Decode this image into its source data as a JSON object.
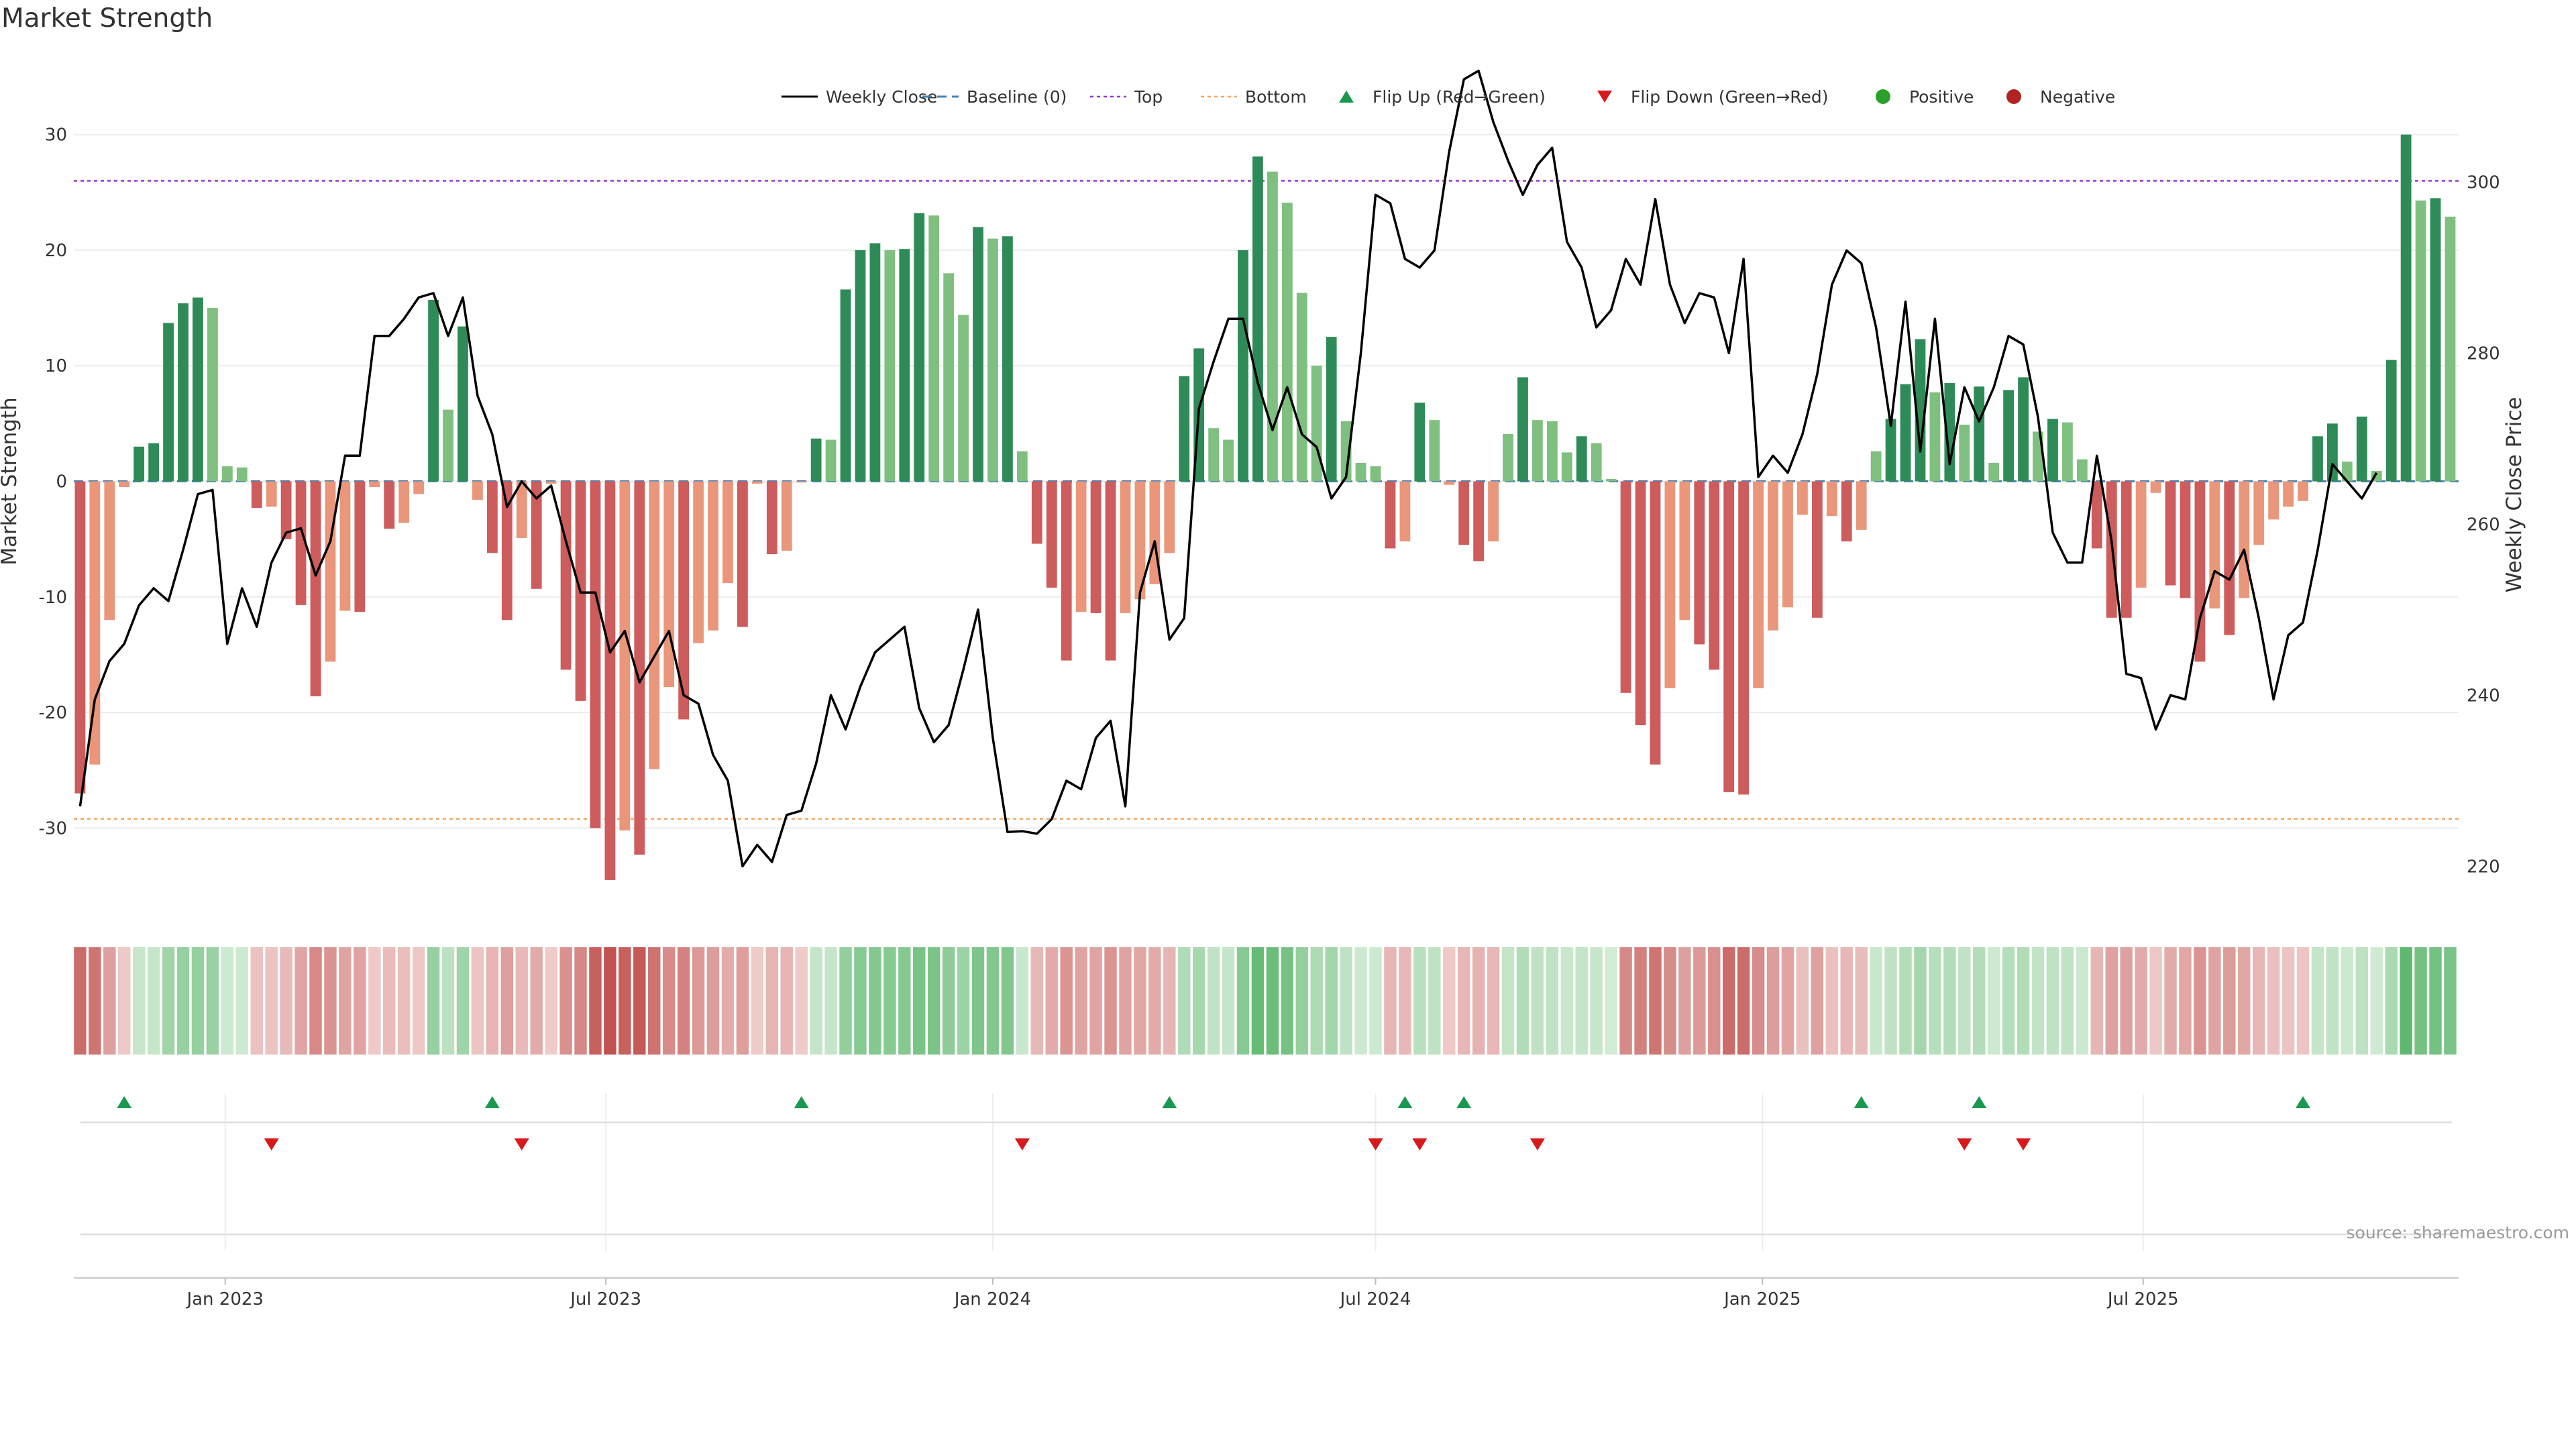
{
  "chart_data": {
    "type": "bar",
    "title": "Market Strength",
    "y_left_label": "Market Strength",
    "y_right_label": "Weekly Close Price",
    "y_left_range": [
      -37,
      37
    ],
    "y_right_range": [
      215,
      315
    ],
    "y_left_ticks": [
      30,
      20,
      10,
      0,
      -10,
      -20,
      -30
    ],
    "y_right_ticks": [
      300,
      280,
      260,
      240,
      220
    ],
    "x_dates": [
      "2022-10-24",
      "2022-10-31",
      "2022-11-07",
      "2022-11-14",
      "2022-11-21",
      "2022-11-28",
      "2022-12-05",
      "2022-12-12",
      "2022-12-19",
      "2022-12-26",
      "2023-01-02",
      "2023-01-09",
      "2023-01-16",
      "2023-01-23",
      "2023-01-30",
      "2023-02-06",
      "2023-02-13",
      "2023-02-20",
      "2023-02-27",
      "2023-03-06",
      "2023-03-13",
      "2023-03-20",
      "2023-03-27",
      "2023-04-03",
      "2023-04-10",
      "2023-04-17",
      "2023-04-24",
      "2023-05-01",
      "2023-05-08",
      "2023-05-15",
      "2023-05-22",
      "2023-05-29",
      "2023-06-05",
      "2023-06-12",
      "2023-06-19",
      "2023-06-26",
      "2023-07-03",
      "2023-07-10",
      "2023-07-17",
      "2023-07-24",
      "2023-07-31",
      "2023-08-07",
      "2023-08-14",
      "2023-08-21",
      "2023-08-28",
      "2023-09-04",
      "2023-09-11",
      "2023-09-18",
      "2023-09-25",
      "2023-10-02",
      "2023-10-09",
      "2023-10-16",
      "2023-10-23",
      "2023-10-30",
      "2023-11-06",
      "2023-11-13",
      "2023-11-20",
      "2023-11-27",
      "2023-12-04",
      "2023-12-11",
      "2023-12-18",
      "2023-12-25",
      "2024-01-01",
      "2024-01-08",
      "2024-01-15",
      "2024-01-22",
      "2024-01-29",
      "2024-02-05",
      "2024-02-12",
      "2024-02-19",
      "2024-02-26",
      "2024-03-04",
      "2024-03-11",
      "2024-03-18",
      "2024-03-25",
      "2024-04-01",
      "2024-04-08",
      "2024-04-15",
      "2024-04-22",
      "2024-04-29",
      "2024-05-06",
      "2024-05-13",
      "2024-05-20",
      "2024-05-27",
      "2024-06-03",
      "2024-06-10",
      "2024-06-17",
      "2024-06-24",
      "2024-07-01",
      "2024-07-08",
      "2024-07-15",
      "2024-07-22",
      "2024-07-29",
      "2024-08-05",
      "2024-08-12",
      "2024-08-19",
      "2024-08-26",
      "2024-09-02",
      "2024-09-09",
      "2024-09-16",
      "2024-09-23",
      "2024-09-30",
      "2024-10-07",
      "2024-10-14",
      "2024-10-21",
      "2024-10-28",
      "2024-11-04",
      "2024-11-11",
      "2024-11-18",
      "2024-11-25",
      "2024-12-02",
      "2024-12-09",
      "2024-12-16",
      "2024-12-23",
      "2024-12-30",
      "2025-01-06",
      "2025-01-13",
      "2025-01-20",
      "2025-01-27",
      "2025-02-03",
      "2025-02-10",
      "2025-02-17",
      "2025-02-24",
      "2025-03-03",
      "2025-03-10",
      "2025-03-17",
      "2025-03-24",
      "2025-03-31",
      "2025-04-07",
      "2025-04-14",
      "2025-04-21",
      "2025-04-28",
      "2025-05-05",
      "2025-05-12",
      "2025-05-19",
      "2025-05-26",
      "2025-06-02",
      "2025-06-09",
      "2025-06-16",
      "2025-06-23",
      "2025-06-30",
      "2025-07-07",
      "2025-07-14",
      "2025-07-21",
      "2025-07-28",
      "2025-08-04",
      "2025-08-11",
      "2025-08-18",
      "2025-08-25",
      "2025-09-01",
      "2025-09-08",
      "2025-09-15",
      "2025-09-22",
      "2025-09-29",
      "2025-10-06",
      "2025-10-13",
      "2025-10-20",
      "2025-10-27",
      "2025-11-03",
      "2025-11-10",
      "2025-11-17",
      "2025-11-24"
    ],
    "x_ticks": [
      "Jan 2023",
      "Jul 2023",
      "Jan 2024",
      "Jul 2024",
      "Jan 2025",
      "Jul 2025"
    ],
    "x_tick_dates": [
      "2023-01-01",
      "2023-07-01",
      "2024-01-01",
      "2024-07-01",
      "2025-01-01",
      "2025-07-01"
    ],
    "x_range": [
      "2022-10-21",
      "2025-11-28"
    ],
    "strength": [
      -27,
      -24.5,
      -12,
      -0.5,
      3,
      3.3,
      13.7,
      15.4,
      15.9,
      15,
      1.3,
      1.2,
      -2.3,
      -2.2,
      -5,
      -10.7,
      -18.6,
      -15.6,
      -11.2,
      -11.3,
      -0.5,
      -4.1,
      -3.6,
      -1.1,
      15.7,
      6.2,
      13.4,
      -1.6,
      -6.2,
      -12,
      -4.9,
      -9.3,
      -0.2,
      -16.3,
      -19,
      -30,
      -34.5,
      -30.2,
      -32.3,
      -24.9,
      -17.8,
      -20.6,
      -14,
      -12.9,
      -8.8,
      -12.6,
      -0.2,
      -6.3,
      -6,
      -0.1,
      3.7,
      3.6,
      16.6,
      20,
      20.6,
      20,
      20.1,
      23.2,
      23,
      18,
      14.4,
      22,
      21,
      21.2,
      2.6,
      -5.4,
      -9.2,
      -15.5,
      -11.3,
      -11.4,
      -15.5,
      -11.4,
      -10.2,
      -8.9,
      -6.2,
      9.1,
      11.5,
      4.6,
      3.6,
      20,
      28.1,
      26.8,
      24.1,
      16.3,
      10,
      12.5,
      5.2,
      1.6,
      1.3,
      -5.8,
      -5.2,
      6.8,
      5.3,
      -0.3,
      -5.5,
      -6.9,
      -5.2,
      4.1,
      9,
      5.3,
      5.2,
      2.5,
      3.9,
      3.3,
      0.2,
      -18.3,
      -21.1,
      -24.5,
      -17.9,
      -12,
      -14.1,
      -16.3,
      -26.9,
      -27.1,
      -17.9,
      -12.9,
      -10.9,
      -2.9,
      -11.8,
      -3,
      -5.2,
      -4.2,
      2.6,
      5.4,
      8.4,
      12.3,
      7.7,
      8.5,
      4.9,
      8.2,
      1.6,
      7.9,
      9,
      4.3,
      5.4,
      5.1,
      1.9,
      -5.8,
      -11.8,
      -11.8,
      -9.2,
      -1,
      -9,
      -10.1,
      -15.6,
      -11,
      -13.3,
      -10.1,
      -5.5,
      -3.3,
      -2.2,
      -1.7,
      3.9,
      5,
      1.7,
      5.6,
      0.9,
      10.5,
      30,
      24.3,
      24.5,
      22.9
    ],
    "weekly_close": [
      227,
      239.5,
      244,
      246,
      250.5,
      252.5,
      251,
      257,
      263.5,
      264,
      246,
      252.5,
      248,
      255.5,
      259,
      259.5,
      254,
      258,
      268,
      268,
      282,
      282,
      284,
      286.5,
      287,
      282,
      286.5,
      275,
      270.5,
      262,
      265,
      263,
      264.5,
      258,
      252,
      252,
      245,
      247.5,
      241.5,
      244.5,
      247.5,
      240,
      239,
      233,
      230,
      220,
      222.5,
      220.5,
      226,
      226.5,
      232,
      240,
      236,
      241,
      245,
      246.5,
      248,
      238.5,
      234.5,
      236.5,
      243,
      250,
      235,
      224,
      224.1,
      223.8,
      225.5,
      230,
      229,
      235,
      237,
      227,
      252,
      258,
      246.5,
      249,
      273.5,
      279,
      284,
      284,
      276.5,
      271,
      276,
      270.5,
      269,
      263,
      265.5,
      280,
      298.5,
      297.5,
      291,
      290,
      292,
      303.5,
      312,
      313,
      307,
      302.5,
      298.5,
      302,
      304,
      293,
      290,
      283,
      285,
      291,
      288,
      298,
      288,
      283.5,
      287,
      286.5,
      280,
      291,
      265.5,
      268,
      266,
      270.5,
      277.5,
      288,
      292,
      290.5,
      283,
      271.5,
      286,
      268.5,
      284,
      267,
      276,
      272,
      276,
      282,
      281,
      272.5,
      259,
      255.5,
      255.5,
      268,
      258,
      242.5,
      242,
      236,
      240,
      239.5,
      249,
      254.5,
      253.5,
      257,
      249,
      239.5,
      247,
      248.5,
      257,
      267,
      265,
      263,
      266
    ],
    "thresholds": {
      "top": 26,
      "bottom": -29.2,
      "baseline": 0
    },
    "flip_up_dates": [
      "2022-11-14",
      "2023-05-08",
      "2023-10-02",
      "2024-03-25",
      "2024-07-15",
      "2024-08-12",
      "2025-02-17",
      "2025-04-14",
      "2025-09-15"
    ],
    "flip_down_dates": [
      "2023-01-23",
      "2023-05-22",
      "2024-01-15",
      "2024-07-01",
      "2024-07-22",
      "2024-09-16",
      "2025-04-07",
      "2025-05-05"
    ],
    "legend_position": "bottom-center",
    "grid": true,
    "legend": [
      "Weekly Close",
      "Baseline (0)",
      "Top",
      "Bottom",
      "Flip Up (Red→Green)",
      "Flip Down (Green→Red)",
      "Positive",
      "Negative"
    ],
    "colors": {
      "strong_positive": "#2e8b57",
      "weak_positive": "#7fbf7f",
      "strong_negative": "#cd5c5c",
      "weak_negative": "#e9967a",
      "close_line": "#000000",
      "baseline": "#4682b4",
      "top_line": "#9932cc",
      "bottom_line": "#f4a460",
      "flip_up": "#1a9850",
      "flip_down": "#d7191c",
      "positive_dot": "#2ca02c",
      "negative_dot": "#b22222"
    }
  },
  "source_text": "source: sharemaestro.com"
}
